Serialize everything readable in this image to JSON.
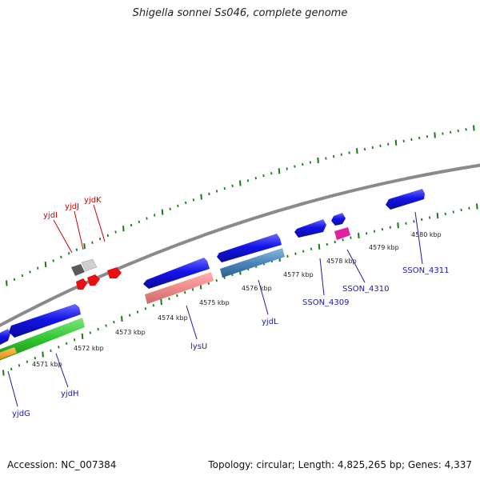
{
  "title": "Shigella sonnei Ss046, complete genome",
  "footer": {
    "accession_label": "Accession:",
    "accession": "NC_007384",
    "summary": "Topology: circular; Length: 4,825,265 bp; Genes: 4,337"
  },
  "colors": {
    "backbone": "#8a8a8a",
    "ticks": "#1a7a1a",
    "forward_gene": "#1515e6",
    "reverse_gene": "#3333e0",
    "rna_label": "#cc0000",
    "gene_label": "#1a1aaa"
  },
  "ruler": [
    "4571 kbp",
    "4572 kbp",
    "4573 kbp",
    "4574 kbp",
    "4575 kbp",
    "4576 kbp",
    "4577 kbp",
    "4578 kbp",
    "4579 kbp",
    "4580 kbp"
  ],
  "gene_labels": [
    {
      "name": "yjdI",
      "color": "rna"
    },
    {
      "name": "yjdJ",
      "color": "rna"
    },
    {
      "name": "yjdK",
      "color": "rna"
    },
    {
      "name": "yjdG",
      "color": "gene"
    },
    {
      "name": "yjdH",
      "color": "gene"
    },
    {
      "name": "lysU",
      "color": "gene"
    },
    {
      "name": "yjdL",
      "color": "gene"
    },
    {
      "name": "SSON_4309",
      "color": "gene"
    },
    {
      "name": "SSON_4310",
      "color": "gene"
    },
    {
      "name": "SSON_4311",
      "color": "gene"
    }
  ]
}
